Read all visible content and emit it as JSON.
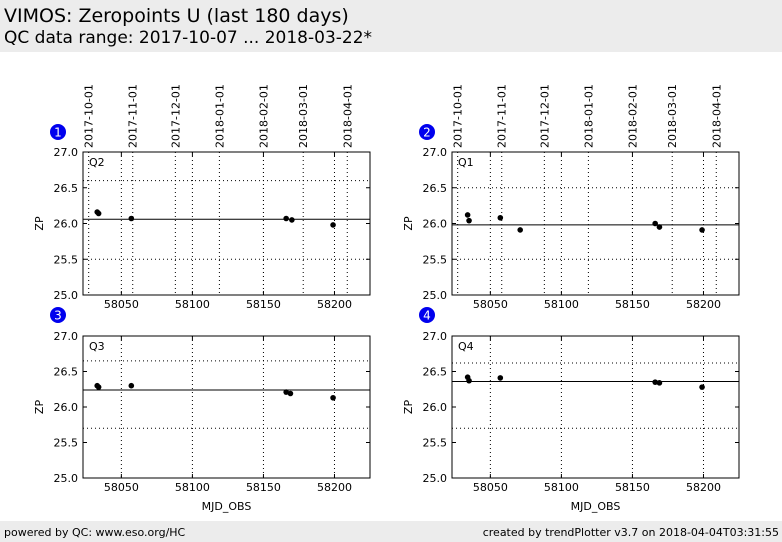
{
  "header": {
    "title": "VIMOS: Zeropoints U (last 180 days)",
    "subtitle": "QC data range: 2017-10-07 ... 2018-03-22*"
  },
  "footer": {
    "left": "powered by QC: www.eso.org/HC",
    "right": "created by trendPlotter v3.7 on 2018-04-04T03:31:55"
  },
  "colors": {
    "background": "#ffffff",
    "band": "#ececec",
    "marker": "#000000",
    "badge": "#0000ee"
  },
  "chart_data": [
    {
      "type": "scatter",
      "badge": "1",
      "label": "Q2",
      "xlim": [
        58023,
        58225
      ],
      "ylim": [
        25.0,
        27.0
      ],
      "xticks": [
        58050,
        58100,
        58150,
        58200
      ],
      "yticks": [
        25.0,
        25.5,
        26.0,
        26.5,
        27.0
      ],
      "ylabel": "ZP",
      "xlabel": "",
      "top_axis_dates": [
        "2017-10-01",
        "2017-11-01",
        "2017-12-01",
        "2018-01-01",
        "2018-02-01",
        "2018-03-01",
        "2018-04-01"
      ],
      "reference_line": 26.06,
      "dotted_lines": [
        26.6,
        25.5
      ],
      "x": [
        58033,
        58034,
        58057,
        58166,
        58170,
        58199
      ],
      "y": [
        26.16,
        26.14,
        26.07,
        26.07,
        26.05,
        25.98
      ]
    },
    {
      "type": "scatter",
      "badge": "2",
      "label": "Q1",
      "xlim": [
        58023,
        58225
      ],
      "ylim": [
        25.0,
        27.0
      ],
      "xticks": [
        58050,
        58100,
        58150,
        58200
      ],
      "yticks": [
        25.0,
        25.5,
        26.0,
        26.5,
        27.0
      ],
      "ylabel": "ZP",
      "xlabel": "",
      "top_axis_dates": [
        "2017-10-01",
        "2017-11-01",
        "2017-12-01",
        "2018-01-01",
        "2018-02-01",
        "2018-03-01",
        "2018-04-01"
      ],
      "reference_line": 25.98,
      "dotted_lines": [
        26.5,
        25.5
      ],
      "x": [
        58034,
        58035,
        58057,
        58071,
        58166,
        58169,
        58199
      ],
      "y": [
        26.12,
        26.04,
        26.08,
        25.91,
        26.0,
        25.95,
        25.91
      ]
    },
    {
      "type": "scatter",
      "badge": "3",
      "label": "Q3",
      "xlim": [
        58023,
        58225
      ],
      "ylim": [
        25.0,
        27.0
      ],
      "xticks": [
        58050,
        58100,
        58150,
        58200
      ],
      "yticks": [
        25.0,
        25.5,
        26.0,
        26.5,
        27.0
      ],
      "ylabel": "ZP",
      "xlabel": "MJD_OBS",
      "reference_line": 26.24,
      "dotted_lines": [
        26.65,
        25.7
      ],
      "x": [
        58033,
        58034,
        58057,
        58166,
        58169,
        58199
      ],
      "y": [
        26.3,
        26.28,
        26.3,
        26.21,
        26.19,
        26.13
      ]
    },
    {
      "type": "scatter",
      "badge": "4",
      "label": "Q4",
      "xlim": [
        58023,
        58225
      ],
      "ylim": [
        25.0,
        27.0
      ],
      "xticks": [
        58050,
        58100,
        58150,
        58200
      ],
      "yticks": [
        25.0,
        25.5,
        26.0,
        26.5,
        27.0
      ],
      "ylabel": "ZP",
      "xlabel": "MJD_OBS",
      "reference_line": 26.36,
      "dotted_lines": [
        26.62,
        25.7
      ],
      "x": [
        58034,
        58035,
        58057,
        58166,
        58169,
        58199
      ],
      "y": [
        26.42,
        26.37,
        26.41,
        26.35,
        26.34,
        26.28
      ]
    }
  ]
}
